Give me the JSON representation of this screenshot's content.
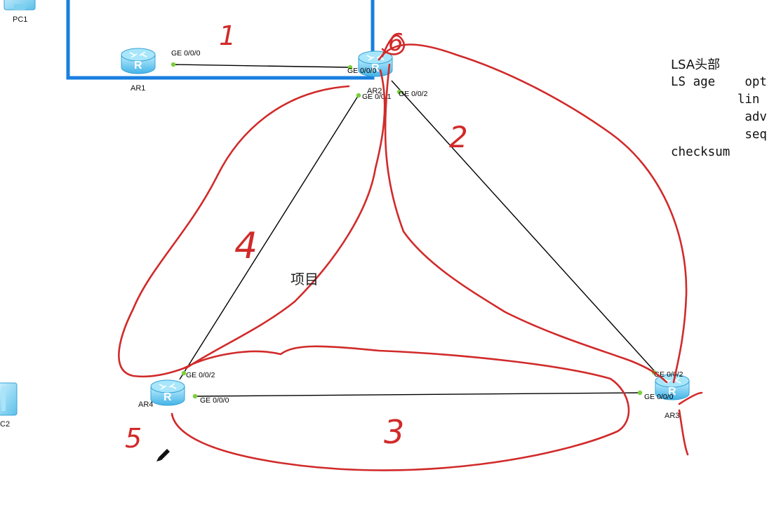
{
  "devices": {
    "pc1": "PC1",
    "pc2": "C2",
    "ar1": "AR1",
    "ar2": "AR2",
    "ar3": "AR3",
    "ar4": "AR4"
  },
  "ports": {
    "ar1_ge000": "GE 0/0/0",
    "ar2_ge000": "GE 0/0/0",
    "ar2_ge001": "GE 0/0/1",
    "ar2_ge002": "GE 0/0/2",
    "ar3_ge002": "GE 0/0/2",
    "ar3_ge000": "GE 0/0/0",
    "ar4_ge002": "GE 0/0/2",
    "ar4_ge000": "GE 0/0/0"
  },
  "center_label": "项目",
  "notes": {
    "line1": "LSA头部",
    "line2": "LS age    opt",
    "line3": "         lin",
    "line4": "          adv",
    "line5": "          seq",
    "line6": "checksum"
  },
  "annotations": {
    "n1": "1",
    "n2": "2",
    "n3": "3",
    "n4": "4",
    "n5": "5",
    "n6": "6"
  },
  "colors": {
    "area_border": "#1a7fe0",
    "annotation": "#d12a2a",
    "link": "#000000",
    "router_body": "#7dd3f2",
    "port_dot": "#7ccf3a"
  }
}
